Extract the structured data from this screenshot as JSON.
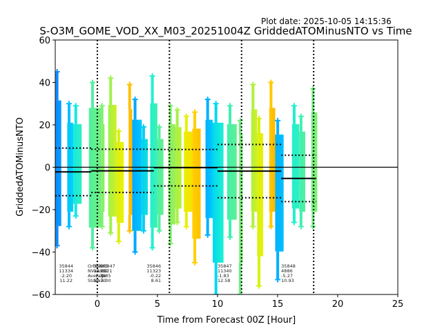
{
  "chart_data": {
    "type": "scatter",
    "title": "S-O3M_GOME_VOD_XX_M03_20251004Z GriddedATOMinusNTO vs Time",
    "plot_date": "Plot date: 2025-10-05 14:15:36",
    "xlabel": "Time from Forecast 00Z [Hour]",
    "ylabel": "GriddedATOMinusNTO",
    "xlim": [
      -3.5,
      25
    ],
    "ylim": [
      -60,
      60
    ],
    "xticks": [
      0,
      5,
      10,
      15,
      20,
      25
    ],
    "xtick_labels": [
      "0",
      "5",
      "10",
      "15",
      "20",
      "25"
    ],
    "yticks": [
      -60,
      -40,
      -20,
      0,
      20,
      40,
      60
    ],
    "ytick_labels": [
      "−60",
      "−40",
      "−20",
      "0",
      "20",
      "40",
      "60"
    ],
    "vertical_dotted_lines_x": [
      0,
      6,
      12,
      18
    ],
    "zero_line_y": 0,
    "stats_header": [
      "OrbitNr",
      "NValues",
      "Average",
      "Stdev"
    ],
    "orbits": [
      {
        "orbit": "35844",
        "nvalues": "11334",
        "average": "-2.20",
        "stdev": "11.22",
        "x_start": -3.5,
        "x_end": -0.5,
        "mean": -2.2,
        "sd": 11.22
      },
      {
        "orbit": "35845",
        "nvalues": "14332",
        "average": "-1.70",
        "stdev": "10.20",
        "x_start": -0.5,
        "x_end": 4.7,
        "mean": -1.7,
        "sd": 10.2
      },
      {
        "orbit": "35846",
        "nvalues": "11323",
        "average": "-0.22",
        "stdev": "8.61",
        "x_start": 4.7,
        "x_end": 10.0,
        "mean": -0.22,
        "sd": 8.61
      },
      {
        "orbit": "35847",
        "nvalues": "11340",
        "average": "-1.83",
        "stdev": "12.58",
        "x_start": 10.0,
        "x_end": 15.3,
        "mean": -1.83,
        "sd": 12.58
      },
      {
        "orbit": "35848",
        "nvalues": "4886",
        "average": "-5.27",
        "stdev": "10.93",
        "x_start": 15.3,
        "x_end": 18.2,
        "mean": -5.27,
        "sd": 10.93
      }
    ],
    "overlap_label": {
      "orbit": "35847",
      "nvalues": "3321",
      "average": "8.85",
      "stdev": "8.00"
    },
    "strips": [
      {
        "x0": -3.5,
        "x1": -3.0,
        "ymin": -37,
        "ymax": 45,
        "color_a": "#0a8cff",
        "color_b": "#0a9cff"
      },
      {
        "x0": -2.5,
        "x1": -2.0,
        "ymin": -28,
        "ymax": 30,
        "color_a": "#00c0ff",
        "color_b": "#00d8f0"
      },
      {
        "x0": -2.0,
        "x1": -1.3,
        "ymin": -23,
        "ymax": 29,
        "color_a": "#16e8e0",
        "color_b": "#30f0c0"
      },
      {
        "x0": -0.7,
        "x1": 0.3,
        "ymin": -38,
        "ymax": 40,
        "color_a": "#50f0a0",
        "color_b": "#70f080"
      },
      {
        "x0": 0.3,
        "x1": 0.6,
        "ymin": -28,
        "ymax": 29,
        "color_a": "#80f070",
        "color_b": "#90f060"
      },
      {
        "x0": 0.9,
        "x1": 1.6,
        "ymin": -31,
        "ymax": 42,
        "color_a": "#a0f050",
        "color_b": "#d0f020"
      },
      {
        "x0": 1.6,
        "x1": 2.2,
        "ymin": -35,
        "ymax": 17,
        "color_a": "#d8f010",
        "color_b": "#f0f000"
      },
      {
        "x0": 2.6,
        "x1": 2.9,
        "ymin": -30,
        "ymax": 39,
        "color_a": "#ffc000",
        "color_b": "#ffb800"
      },
      {
        "x0": 2.9,
        "x1": 3.7,
        "ymin": -40,
        "ymax": 32,
        "color_a": "#00a8ff",
        "color_b": "#00c8ff"
      },
      {
        "x0": 3.7,
        "x1": 4.2,
        "ymin": -30,
        "ymax": 19,
        "color_a": "#00d0f0",
        "color_b": "#10e0e0"
      },
      {
        "x0": 4.4,
        "x1": 5.0,
        "ymin": -38,
        "ymax": 43,
        "color_a": "#20f0d0",
        "color_b": "#40f0b0"
      },
      {
        "x0": 5.0,
        "x1": 5.5,
        "ymin": -30,
        "ymax": 19,
        "color_a": "#50f0a0",
        "color_b": "#60f090"
      },
      {
        "x0": 5.9,
        "x1": 6.5,
        "ymin": -36,
        "ymax": 29,
        "color_a": "#80f070",
        "color_b": "#a0f050"
      },
      {
        "x0": 6.5,
        "x1": 7.0,
        "ymin": -26,
        "ymax": 27,
        "color_a": "#a8f048",
        "color_b": "#b8f038"
      },
      {
        "x0": 7.2,
        "x1": 7.9,
        "ymin": -28,
        "ymax": 24,
        "color_a": "#e8f008",
        "color_b": "#f8e000"
      },
      {
        "x0": 7.9,
        "x1": 8.6,
        "ymin": -45,
        "ymax": 26,
        "color_a": "#ffd000",
        "color_b": "#ffc000"
      },
      {
        "x0": 9.0,
        "x1": 9.6,
        "ymin": -32,
        "ymax": 32,
        "color_a": "#00b0ff",
        "color_b": "#00c8ff"
      },
      {
        "x0": 9.6,
        "x1": 10.5,
        "ymin": -60,
        "ymax": 30,
        "color_a": "#00d8f0",
        "color_b": "#20f0d0"
      },
      {
        "x0": 10.8,
        "x1": 11.6,
        "ymin": -33,
        "ymax": 29,
        "color_a": "#40f0b0",
        "color_b": "#60f090"
      },
      {
        "x0": 11.8,
        "x1": 12.1,
        "ymin": -60,
        "ymax": 22,
        "color_a": "#70f080",
        "color_b": "#80f070"
      },
      {
        "x0": 12.8,
        "x1": 13.3,
        "ymin": -28,
        "ymax": 39,
        "color_a": "#b0f040",
        "color_b": "#d0f020"
      },
      {
        "x0": 13.3,
        "x1": 13.8,
        "ymin": -56,
        "ymax": 23,
        "color_a": "#d8f010",
        "color_b": "#e8f008"
      },
      {
        "x0": 14.3,
        "x1": 14.8,
        "ymin": -28,
        "ymax": 40,
        "color_a": "#ffc800",
        "color_b": "#ffb800"
      },
      {
        "x0": 14.8,
        "x1": 15.5,
        "ymin": -53,
        "ymax": 22,
        "color_a": "#00b0ff",
        "color_b": "#00c0ff"
      },
      {
        "x0": 16.2,
        "x1": 16.8,
        "ymin": -26,
        "ymax": 29,
        "color_a": "#20f0d0",
        "color_b": "#30f0c0"
      },
      {
        "x0": 16.8,
        "x1": 17.3,
        "ymin": -28,
        "ymax": 24,
        "color_a": "#40f0b0",
        "color_b": "#50f0a0"
      },
      {
        "x0": 17.8,
        "x1": 18.3,
        "ymin": -28,
        "ymax": 37,
        "color_a": "#70f080",
        "color_b": "#80f070"
      }
    ]
  }
}
